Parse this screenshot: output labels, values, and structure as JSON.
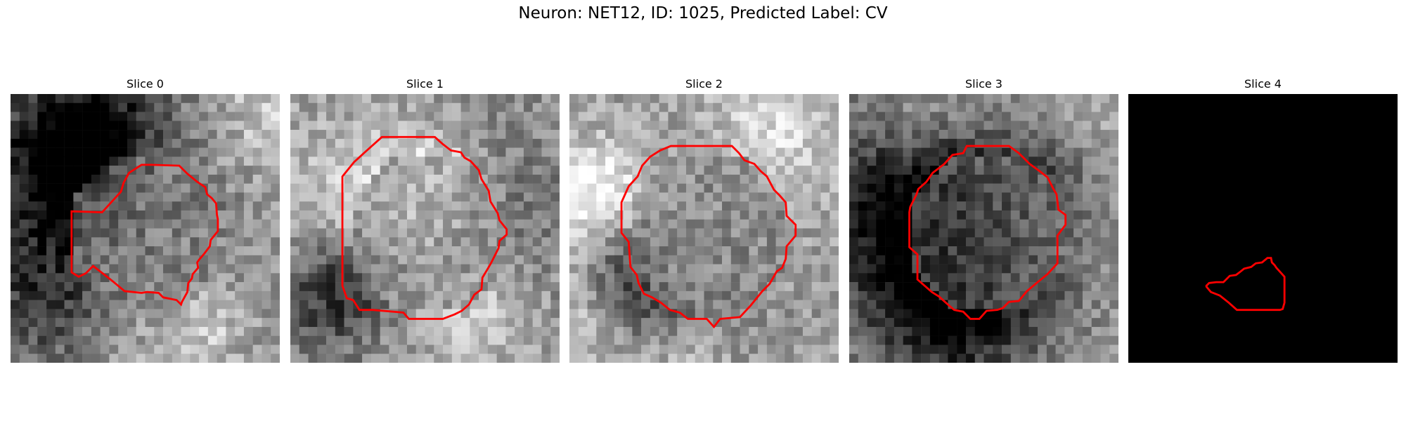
{
  "figure": {
    "title": "Neuron: NET12, ID: 1025, Predicted Label: CV"
  },
  "panels": [
    {
      "title": "Slice 0",
      "seed": 11,
      "blank": false,
      "base": 0.55,
      "contrast": 0.32,
      "center_shade": 0.5
    },
    {
      "title": "Slice 1",
      "seed": 23,
      "blank": false,
      "base": 0.58,
      "contrast": 0.3,
      "center_shade": 0.55
    },
    {
      "title": "Slice 2",
      "seed": 37,
      "blank": false,
      "base": 0.62,
      "contrast": 0.3,
      "center_shade": 0.52
    },
    {
      "title": "Slice 3",
      "seed": 53,
      "blank": false,
      "base": 0.6,
      "contrast": 0.28,
      "center_shade": 0.45
    },
    {
      "title": "Slice 4",
      "seed": 71,
      "blank": true,
      "base": 0.0,
      "contrast": 0.0,
      "center_shade": 0.0
    }
  ],
  "contour_color": "#ff0000",
  "background_blank_color": "#000000"
}
